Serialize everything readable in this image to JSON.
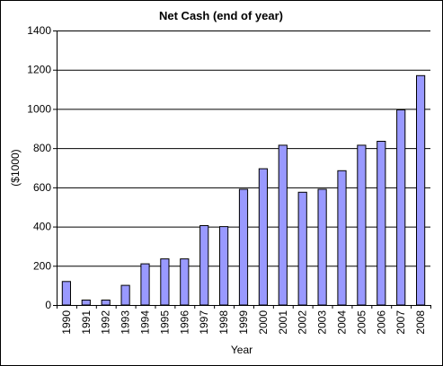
{
  "chart_data": {
    "type": "bar",
    "title": "Net Cash (end of year)",
    "xlabel": "Year",
    "ylabel": "($1000)",
    "ylim": [
      0,
      1400
    ],
    "yticks": [
      0,
      200,
      400,
      600,
      800,
      1000,
      1200,
      1400
    ],
    "grid": true,
    "legend": "none",
    "categories": [
      "1990",
      "1991",
      "1992",
      "1993",
      "1994",
      "1995",
      "1996",
      "1997",
      "1998",
      "1999",
      "2000",
      "2001",
      "2002",
      "2003",
      "2004",
      "2005",
      "2006",
      "2007",
      "2008"
    ],
    "values": [
      120,
      25,
      25,
      100,
      210,
      235,
      235,
      405,
      400,
      590,
      695,
      815,
      575,
      590,
      685,
      815,
      835,
      995,
      1170
    ],
    "colors": {
      "bar_fill": "#9999ff",
      "bar_stroke": "#000000",
      "gridline": "#000000",
      "axis": "#000000"
    }
  }
}
